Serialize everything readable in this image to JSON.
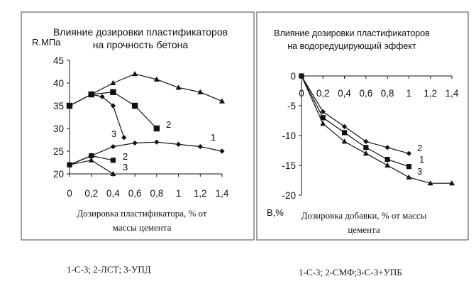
{
  "captions": {
    "left": "1-С-3; 2-ЛСТ; 3-УПД",
    "right": "1-С-3; 2-СМФ;3-С-3+УПБ"
  },
  "colors": {
    "ink": "#111111",
    "frame": "#444444"
  },
  "chart_data": [
    {
      "type": "line",
      "title_lines": [
        "Влияние дозировки пластификаторов",
        "на прочность бетона"
      ],
      "ylabel": "R.МПа",
      "xlabel_lines": [
        "Дозировка пластификатора, % от",
        "массы цемента"
      ],
      "xlim": [
        0,
        1.4
      ],
      "ylim": [
        20,
        45
      ],
      "x_ticks": [
        0,
        0.2,
        0.4,
        0.6,
        0.8,
        1,
        1.2,
        1.4
      ],
      "x_tick_labels": [
        "0",
        "0,2",
        "0,4",
        "0,6",
        "0,8",
        "1",
        "1,2",
        "1,4"
      ],
      "y_ticks": [
        20,
        25,
        30,
        35,
        40,
        45
      ],
      "y_tick_labels": [
        "20",
        "25",
        "30",
        "35",
        "40",
        "45"
      ],
      "grid": false,
      "series": [
        {
          "label": "1",
          "marker": "triangle",
          "x": [
            0,
            0.2,
            0.4,
            0.6,
            0.8,
            1.0,
            1.2,
            1.4
          ],
          "y": [
            35,
            37.5,
            40,
            42,
            40.8,
            39,
            38,
            36
          ]
        },
        {
          "label": "2",
          "marker": "square",
          "x": [
            0,
            0.2,
            0.4,
            0.6,
            0.8
          ],
          "y": [
            35,
            37.5,
            38,
            35,
            30
          ]
        },
        {
          "label": "3",
          "marker": "diamond",
          "x": [
            0,
            0.2,
            0.3,
            0.4,
            0.5
          ],
          "y": [
            35,
            37.5,
            37,
            35,
            28
          ]
        },
        {
          "label": "1",
          "marker": "diamond",
          "x": [
            0,
            0.2,
            0.4,
            0.6,
            0.8,
            1.0,
            1.2,
            1.4
          ],
          "y": [
            22,
            24,
            26,
            26.8,
            27,
            26.5,
            26,
            25
          ]
        },
        {
          "label": "2",
          "marker": "square",
          "x": [
            0,
            0.2,
            0.4
          ],
          "y": [
            22,
            24,
            23
          ]
        },
        {
          "label": "3",
          "marker": "triangle",
          "x": [
            0,
            0.2,
            0.4
          ],
          "y": [
            22,
            23,
            20
          ]
        }
      ]
    },
    {
      "type": "line",
      "title_lines": [
        "Влияние дозировки пластификаторов",
        "на водоредуцирующий эффект"
      ],
      "ylabel": "В,%",
      "xlabel_lines": [
        "Дозировка добавки, % от массы",
        "цемента"
      ],
      "xlim": [
        0,
        1.4
      ],
      "ylim": [
        -20,
        0
      ],
      "x_ticks": [
        0,
        0.2,
        0.4,
        0.6,
        0.8,
        1,
        1.2,
        1.4
      ],
      "x_tick_labels": [
        "0",
        "0,2",
        "0,4",
        "0,6",
        "0,8",
        "1",
        "1,2",
        "1,4"
      ],
      "y_ticks": [
        0,
        -5,
        -10,
        -15,
        -20
      ],
      "y_tick_labels": [
        "0",
        "-5",
        "-10",
        "-15",
        "-20"
      ],
      "grid": false,
      "series": [
        {
          "label": "2",
          "marker": "diamond",
          "x": [
            0,
            0.2,
            0.4,
            0.6,
            0.8,
            1.0
          ],
          "y": [
            0,
            -6,
            -8.5,
            -11,
            -12,
            -13
          ]
        },
        {
          "label": "1",
          "marker": "square",
          "x": [
            0,
            0.2,
            0.4,
            0.6,
            0.8,
            1.0
          ],
          "y": [
            0,
            -7,
            -9.5,
            -12,
            -14,
            -15.2
          ]
        },
        {
          "label": "3",
          "marker": "triangle",
          "x": [
            0,
            0.2,
            0.4,
            0.6,
            0.8,
            1.0,
            1.2,
            1.4
          ],
          "y": [
            0,
            -8,
            -11,
            -13,
            -15,
            -17,
            -18,
            -18
          ]
        }
      ]
    }
  ]
}
